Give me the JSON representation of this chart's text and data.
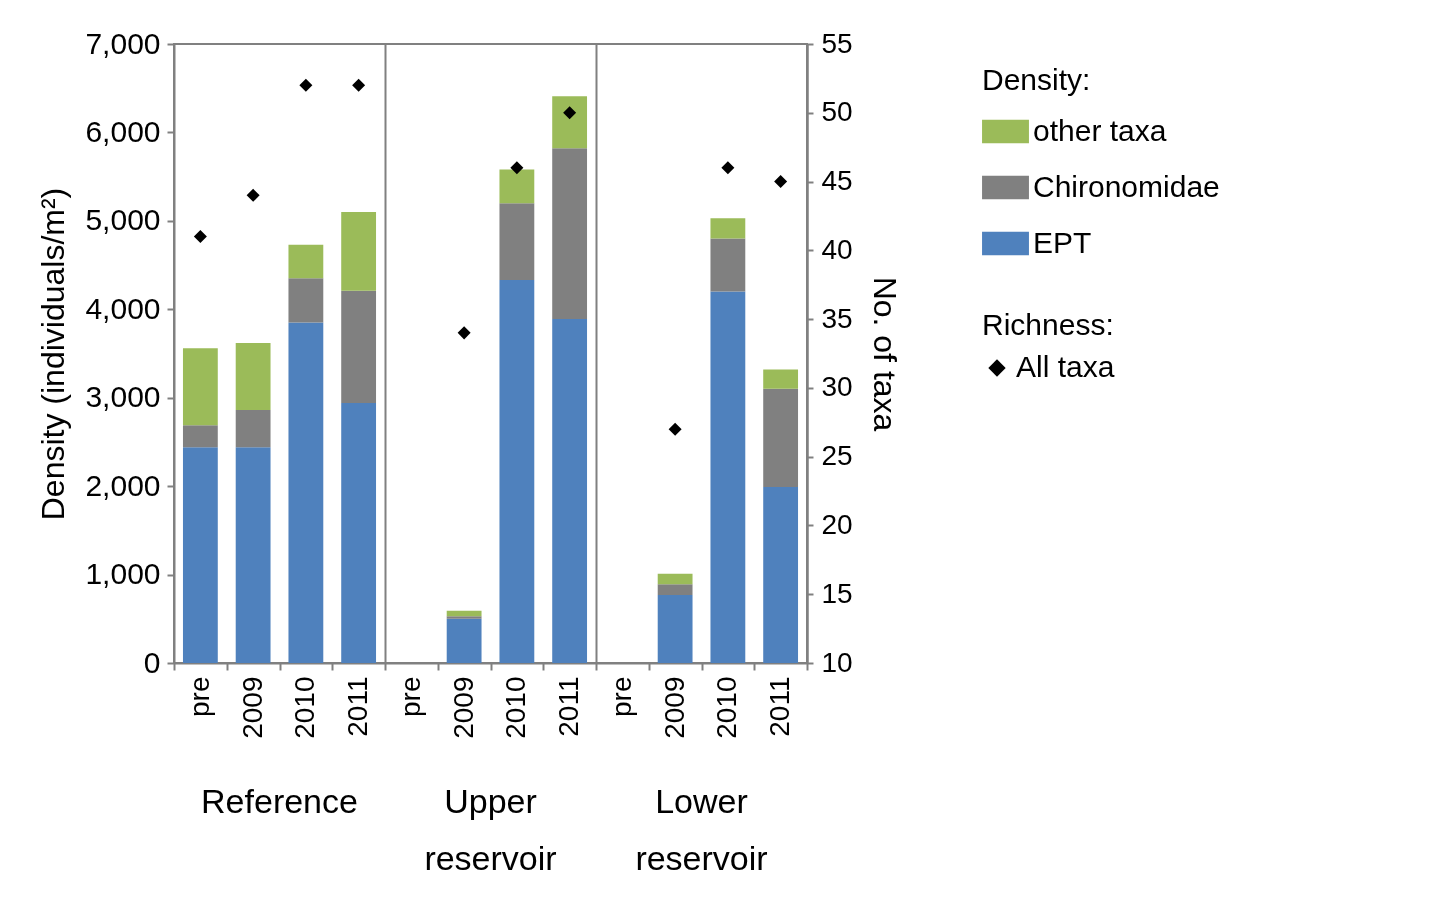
{
  "chart_data": {
    "type": "bar",
    "stacked": true,
    "categories": [
      "pre",
      "2009",
      "2010",
      "2011",
      "pre",
      "2009",
      "2010",
      "2011",
      "pre",
      "2009",
      "2010",
      "2011"
    ],
    "ylabel": "Density (individuals/m²)",
    "y2label": "No. of taxa",
    "legend_title": [
      "Density:",
      "Richness:"
    ],
    "legend": "right",
    "annotations": [
      "Reference",
      "Upper reservoir",
      "Lower reservoir"
    ],
    "ylim": [
      0,
      7000
    ],
    "yticks": [
      0,
      {
        "value": 1000,
        "label": "1,000"
      },
      {
        "value": 2000,
        "label": "2,000"
      },
      {
        "value": 3000,
        "label": "3,000"
      },
      {
        "value": 4000,
        "label": "4,000"
      },
      {
        "value": 5000,
        "label": "5,000"
      },
      {
        "value": 6000,
        "label": "6,000"
      },
      {
        "value": 7000,
        "label": "7,000"
      }
    ],
    "y2lim": [
      10,
      55
    ],
    "y2ticks": [
      10,
      15,
      20,
      25,
      30,
      35,
      40,
      45,
      50,
      55
    ],
    "series": [
      {
        "name": "EPT",
        "color": "#4f81bd",
        "values": [
          2440,
          2440,
          3850,
          2940,
          null,
          500,
          4330,
          3890,
          null,
          770,
          4200,
          1990
        ]
      },
      {
        "name": "Chironomidae",
        "color": "#808080",
        "values": [
          250,
          420,
          500,
          1270,
          null,
          30,
          870,
          1930,
          null,
          120,
          600,
          1110
        ]
      },
      {
        "name": "other taxa",
        "color": "#9bbb59",
        "values": [
          870,
          760,
          380,
          890,
          null,
          60,
          380,
          590,
          null,
          120,
          230,
          220
        ]
      },
      {
        "name": "All taxa",
        "type": "scatter",
        "axis": "y2",
        "marker": "diamond",
        "color": "#000000",
        "values": [
          41,
          44,
          52,
          52,
          null,
          34,
          46,
          50,
          null,
          27,
          46,
          45
        ]
      }
    ]
  }
}
